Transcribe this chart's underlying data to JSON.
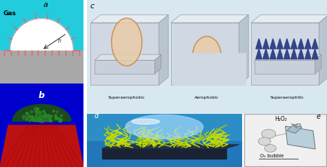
{
  "panel_a": {
    "label": "a",
    "bg_cyan": "#22CCDD",
    "bg_gray": "#A8A8A8",
    "bubble_white": "#FFFFFF",
    "gas_text": "Gas",
    "tick_color": "#FF5555",
    "arrow_color": "#444444",
    "h_label": "h"
  },
  "panel_b": {
    "label": "b",
    "bg_blue": "#0000CC",
    "red_color": "#BB1111",
    "green_color": "#336633",
    "dark_valley": "#000044"
  },
  "panel_c": {
    "label": "c",
    "bg_color": "#D8E8F0",
    "box_front": "#D0D8E4",
    "box_top": "#E4ECF4",
    "box_right": "#B8C4D0",
    "surface_color": "#C8D0DC",
    "bubble_fill": "#E8CCA8",
    "bubble_edge": "#CC8844",
    "tri_color": "#334488",
    "labels": [
      "Superaerophobic",
      "Aerophobic",
      "Superaerophilic"
    ]
  },
  "panel_d": {
    "label": "d",
    "bg_top": "#3388CC",
    "bg_bot": "#005599",
    "bubble_color": "#AADDFF",
    "grass_yellow": "#CCDD00",
    "grass_green": "#227722",
    "platform_dark": "#223344"
  },
  "panel_e": {
    "label": "e",
    "bg": "#F0F0F0",
    "border": "#AAAAAA",
    "plate_color": "#B8D0DC",
    "cylinder_color": "#A0C0CC",
    "bubble_gray": "#CCCCCC",
    "text_h2o2": "H₂O₂",
    "text_o2": "O₂ bubble"
  },
  "figsize": [
    4.74,
    2.42
  ],
  "dpi": 100
}
